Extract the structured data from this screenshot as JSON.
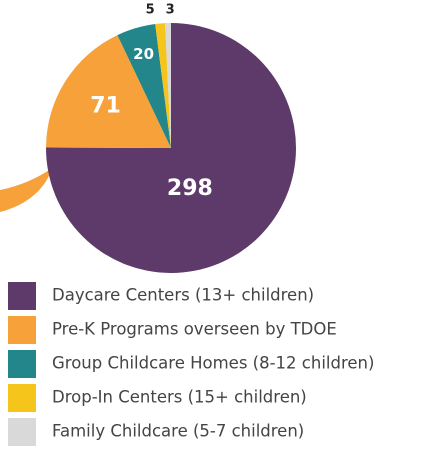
{
  "chart_data": {
    "type": "pie",
    "categories": [
      "Daycare Centers (13+ children)",
      "Pre-K Programs overseen by TDOE",
      "Group Childcare Homes (8-12 children)",
      "Drop-In Centers (15+ children)",
      "Family Childcare (5-7 children)"
    ],
    "values": [
      298,
      71,
      20,
      5,
      3
    ],
    "colors": [
      "#5e3a6a",
      "#f7a13a",
      "#23868a",
      "#f6c51b",
      "#d9d9d9"
    ],
    "start_angle": "top",
    "direction": "clockwise",
    "legend": "bottom"
  }
}
